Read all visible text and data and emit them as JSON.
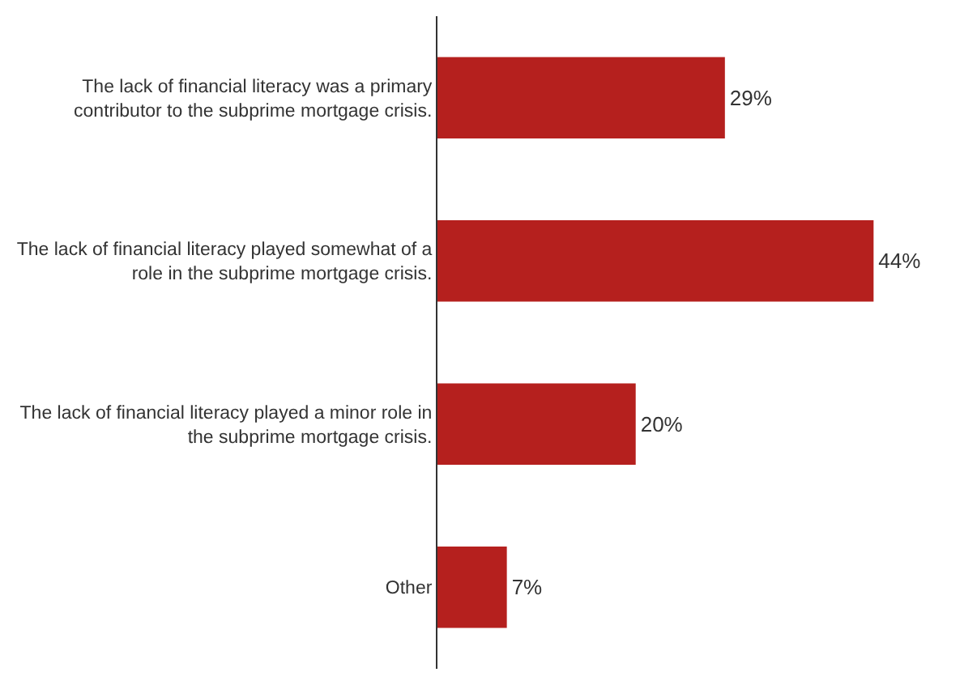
{
  "chart_data": {
    "type": "bar",
    "orientation": "horizontal",
    "tick_labels": "y",
    "categories": [
      "The lack of financial literacy was a primary contributor to the subprime mortgage crisis.",
      "The lack of financial literacy played somewhat of a role in the subprime mortgage crisis.",
      "The lack of financial literacy played a minor role in the subprime mortgage crisis.",
      "Other"
    ],
    "values": [
      29,
      44,
      20,
      7
    ],
    "value_labels": [
      "29%",
      "44%",
      "20%",
      "7%"
    ],
    "color": "#b5201e"
  }
}
